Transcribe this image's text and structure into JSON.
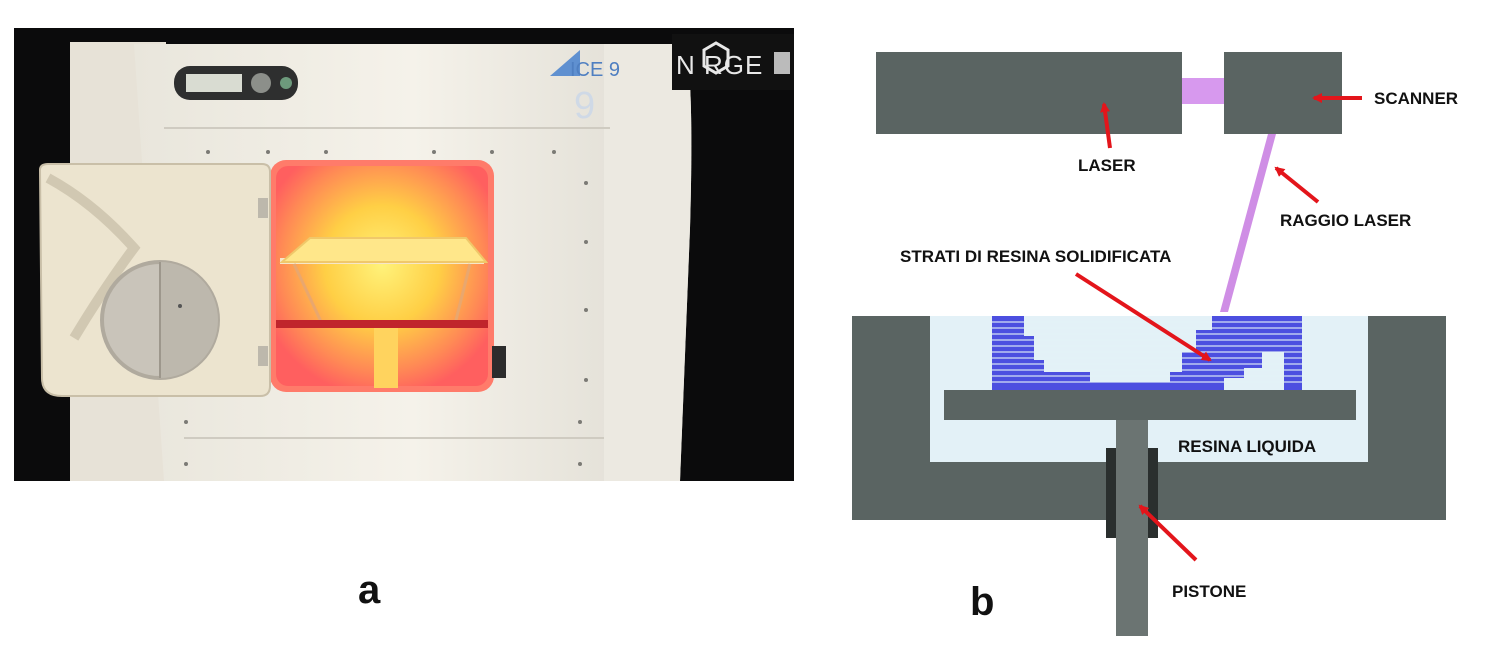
{
  "panel_a": {
    "label": "a",
    "logo_text": "N RGE",
    "brand_mark": "ICE 9"
  },
  "panel_b": {
    "label": "b",
    "labels": {
      "laser": "LASER",
      "scanner": "SCANNER",
      "laser_beam": "RAGGIO LASER",
      "solidified_layers": "STRATI DI RESINA SOLIDIFICATA",
      "liquid_resin": "RESINA LIQUIDA",
      "piston": "PISTONE"
    },
    "colors": {
      "machine_gray": "#5a6462",
      "resin_liquid": "#e3f1f7",
      "solid_layers": "#4c4fe0",
      "beam": "#c77ae0",
      "arrow": "#e3151b"
    }
  }
}
